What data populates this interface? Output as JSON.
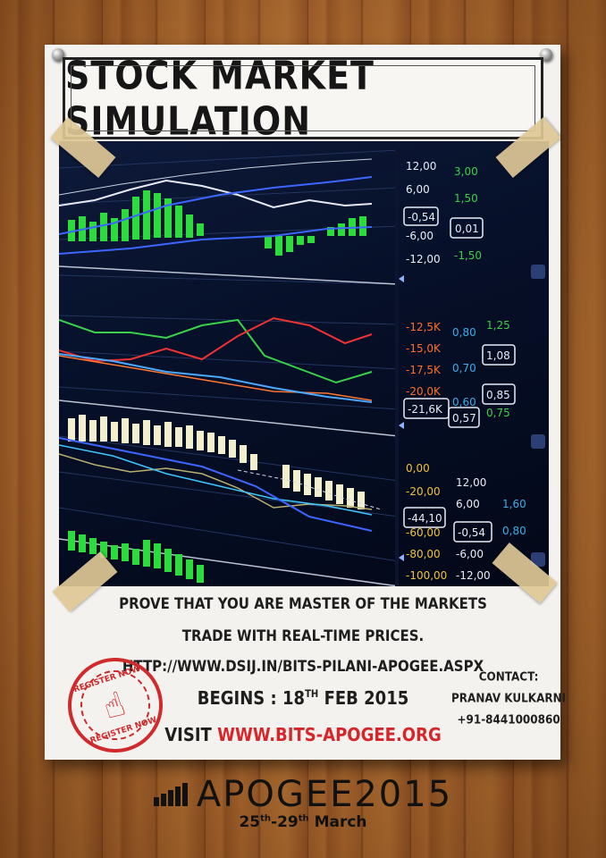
{
  "poster": {
    "title": "STOCK MARKET SIMULATION",
    "tagline": "PROVE THAT YOU ARE MASTER OF THE MARKETS",
    "subline": "TRADE WITH REAL-TIME PRICES.",
    "link": "HTTP://WWW.DSIJ.IN/BITS-PILANI-APOGEE.ASPX",
    "begins_label": "BEGINS :",
    "begins_day": "18",
    "begins_sup": "TH",
    "begins_rest": "FEB 2015",
    "visit_label": "VISIT",
    "visit_url": "WWW.BITS-APOGEE.ORG",
    "stamp_top": "REGISTER NOW",
    "stamp_bottom": "REGISTER NOW"
  },
  "contact": {
    "label": "CONTACT:",
    "name": "PRANAV KULKARNI",
    "phone": "+91-8441000860"
  },
  "footer": {
    "brand": "APOGEE",
    "year": "2015",
    "date_start": "25",
    "date_start_sup": "th",
    "date_end": "-29",
    "date_end_sup": "th",
    "date_month": "March"
  },
  "chart_panel": {
    "panel1_left": [
      "12,00",
      "6,00",
      "-6,00",
      "-12,00"
    ],
    "panel1_boxed": "-0,54",
    "panel1_right": [
      "3,00",
      "1,50",
      "-1,50"
    ],
    "panel1_right_boxed": "0,01",
    "panel2_left": [
      "-12,5K",
      "-15,0K",
      "-17,5K",
      "-20,0K"
    ],
    "panel2_boxed": "-21,6K",
    "panel2_mid": [
      "0,80",
      "0,70",
      "0,60"
    ],
    "panel2_mid_boxed": "0,57",
    "panel2_right": [
      "1,25",
      "0,75"
    ],
    "panel2_right_boxed": [
      "1,08",
      "0,85"
    ],
    "panel3_left": [
      "0,00",
      "-20,00",
      "-60,00",
      "-80,00",
      "-100,00"
    ],
    "panel3_boxed": "-44,10",
    "panel3_mid": [
      "12,00",
      "6,00",
      "-6,00",
      "-12,00"
    ],
    "panel3_mid_boxed": "-0,54",
    "panel3_right": [
      "1,60",
      "0,80"
    ]
  },
  "colors": {
    "accent_red": "#d7262b",
    "stamp_red": "#cf2a2c",
    "positive_green": "#39d14a",
    "label_white": "#e8edf5"
  }
}
